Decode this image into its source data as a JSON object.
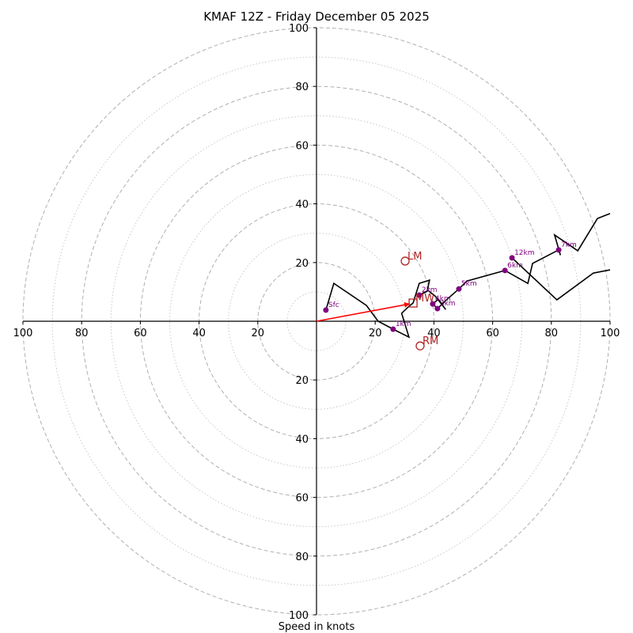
{
  "chart_data": {
    "type": "line",
    "subtype": "hodograph",
    "title": "KMAF 12Z - Friday December 05 2025",
    "xlabel": "Speed in knots",
    "ylabel": "",
    "range": [
      -100,
      100
    ],
    "xlim": [
      -100,
      100
    ],
    "ylim": [
      -100,
      100
    ],
    "ring_major_step": 20,
    "ring_minor_step": 10,
    "x_tick_labels": [
      "100",
      "80",
      "60",
      "40",
      "20",
      "20",
      "40",
      "60",
      "80",
      "100"
    ],
    "x_tick_values": [
      -100,
      -80,
      -60,
      -40,
      -20,
      20,
      40,
      60,
      80,
      100
    ],
    "y_tick_labels": [
      "100",
      "80",
      "60",
      "40",
      "20",
      "20",
      "40",
      "60",
      "80",
      "100"
    ],
    "y_tick_values": [
      100,
      80,
      60,
      40,
      20,
      -20,
      -40,
      -60,
      -80,
      -100
    ],
    "grid": true,
    "hodograph_trace": {
      "name": "wind profile",
      "color": "#000000",
      "points": [
        [
          3.2,
          3.8
        ],
        [
          5.9,
          12.9
        ],
        [
          17.0,
          5.4
        ],
        [
          21.0,
          0.0
        ],
        [
          26.1,
          -2.7
        ],
        [
          31.5,
          -5.4
        ],
        [
          29.0,
          2.7
        ],
        [
          31.5,
          5.1
        ],
        [
          32.9,
          6.2
        ],
        [
          35.0,
          12.9
        ],
        [
          38.5,
          14.0
        ],
        [
          37.7,
          10.2
        ],
        [
          35.0,
          8.9
        ],
        [
          38.0,
          10.5
        ],
        [
          40.5,
          8.5
        ],
        [
          44.0,
          4.0
        ],
        [
          41.5,
          7.5
        ],
        [
          39.6,
          5.9
        ],
        [
          41.2,
          4.3
        ],
        [
          44.5,
          7.5
        ],
        [
          48.5,
          11.0
        ],
        [
          51.2,
          13.7
        ],
        [
          64.2,
          17.3
        ],
        [
          72.0,
          12.9
        ],
        [
          73.6,
          19.7
        ],
        [
          82.5,
          24.3
        ],
        [
          83.1,
          22.5
        ],
        [
          81.1,
          29.4
        ],
        [
          89.0,
          24.0
        ],
        [
          95.7,
          35.0
        ],
        [
          100.0,
          36.7
        ]
      ],
      "upper_branch": [
        [
          66.6,
          21.6
        ],
        [
          81.9,
          7.3
        ],
        [
          94.3,
          16.4
        ],
        [
          100.0,
          17.5
        ]
      ]
    },
    "height_markers": {
      "color": "#800080",
      "labels": [
        "Sfc",
        "1km",
        "2km",
        "3km",
        "4km",
        "5km",
        "6km",
        "7km",
        "12km"
      ],
      "points": [
        [
          3.2,
          3.8
        ],
        [
          26.1,
          -2.7
        ],
        [
          35.0,
          8.9
        ],
        [
          41.2,
          4.3
        ],
        [
          39.6,
          5.9
        ],
        [
          48.5,
          11.0
        ],
        [
          64.2,
          17.3
        ],
        [
          82.5,
          24.3
        ],
        [
          66.6,
          21.6
        ]
      ]
    },
    "storm_motion": {
      "color": "#b22222",
      "labels": [
        "RM",
        "LM",
        "MW"
      ],
      "points": [
        [
          35.3,
          -8.4
        ],
        [
          30.2,
          20.5
        ],
        [
          32.9,
          6.2
        ]
      ],
      "markers": [
        "circle",
        "circle",
        "square"
      ]
    },
    "shear_vector": {
      "color": "#ff0000",
      "from": [
        0,
        0
      ],
      "to": [
        32.9,
        6.2
      ]
    }
  }
}
